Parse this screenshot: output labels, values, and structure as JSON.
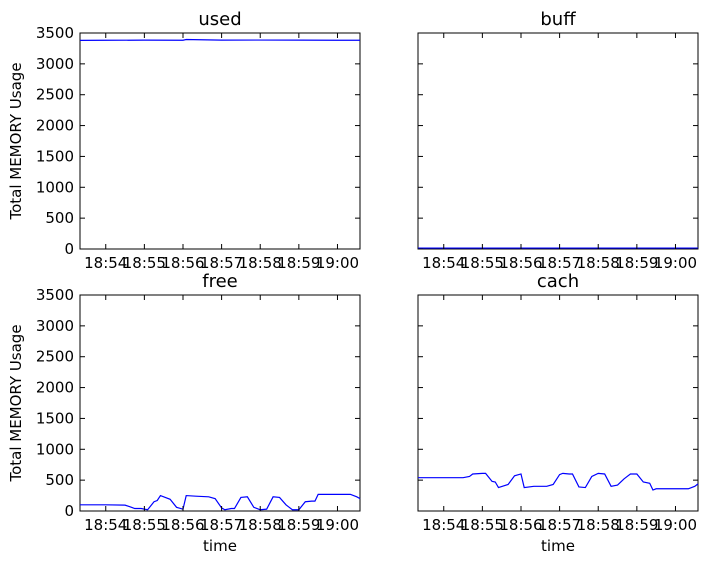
{
  "chart_data": [
    {
      "type": "line",
      "title": "used",
      "ylabel": "Total MEMORY Usage",
      "xlabel": "",
      "x_ticks": [
        "18:54",
        "18:55",
        "18:56",
        "18:57",
        "18:58",
        "18:59",
        "19:00"
      ],
      "y_ticks": [
        "0",
        "500",
        "1000",
        "1500",
        "2000",
        "2500",
        "3000",
        "3500"
      ],
      "ylim": [
        0,
        3500
      ],
      "xlim": [
        "18:53:20",
        "19:00:35"
      ],
      "grid": false,
      "series": [
        {
          "color": "#0000ff",
          "x": [
            "18:53:20",
            "18:54:00",
            "18:55:00",
            "18:56:00",
            "18:56:05",
            "18:57:00",
            "18:58:00",
            "18:59:00",
            "19:00:00",
            "19:00:35"
          ],
          "y": [
            3380,
            3382,
            3384,
            3383,
            3395,
            3385,
            3386,
            3384,
            3383,
            3382
          ]
        }
      ]
    },
    {
      "type": "line",
      "title": "buff",
      "ylabel": "",
      "xlabel": "",
      "x_ticks": [
        "18:54",
        "18:55",
        "18:56",
        "18:57",
        "18:58",
        "18:59",
        "19:00"
      ],
      "y_ticks": [],
      "ylim": [
        0,
        3500
      ],
      "xlim": [
        "18:53:20",
        "19:00:35"
      ],
      "grid": false,
      "series": [
        {
          "color": "#0000ff",
          "x": [
            "18:53:20",
            "19:00:35"
          ],
          "y": [
            15,
            15
          ]
        }
      ]
    },
    {
      "type": "line",
      "title": "free",
      "ylabel": "Total MEMORY Usage",
      "xlabel": "time",
      "x_ticks": [
        "18:54",
        "18:55",
        "18:56",
        "18:57",
        "18:58",
        "18:59",
        "19:00"
      ],
      "y_ticks": [
        "0",
        "500",
        "1000",
        "1500",
        "2000",
        "2500",
        "3000",
        "3500"
      ],
      "ylim": [
        0,
        3500
      ],
      "xlim": [
        "18:53:20",
        "19:00:35"
      ],
      "grid": false,
      "series": [
        {
          "color": "#0000ff",
          "x": [
            "18:53:20",
            "18:54:00",
            "18:54:30",
            "18:54:40",
            "18:54:45",
            "18:54:55",
            "18:55:05",
            "18:55:15",
            "18:55:20",
            "18:55:25",
            "18:55:40",
            "18:55:50",
            "18:56:00",
            "18:56:05",
            "18:56:20",
            "18:56:40",
            "18:56:50",
            "18:57:00",
            "18:57:05",
            "18:57:15",
            "18:57:20",
            "18:57:30",
            "18:57:40",
            "18:57:50",
            "18:58:00",
            "18:58:10",
            "18:58:20",
            "18:58:30",
            "18:58:40",
            "18:58:45",
            "18:58:50",
            "18:59:00",
            "18:59:10",
            "18:59:20",
            "18:59:25",
            "18:59:30",
            "19:00:20",
            "19:00:30",
            "19:00:35"
          ],
          "y": [
            100,
            100,
            95,
            60,
            40,
            40,
            20,
            150,
            170,
            250,
            190,
            60,
            30,
            250,
            240,
            230,
            200,
            50,
            20,
            40,
            40,
            220,
            230,
            60,
            20,
            30,
            230,
            220,
            100,
            60,
            20,
            20,
            150,
            160,
            160,
            270,
            270,
            230,
            200
          ]
        }
      ]
    },
    {
      "type": "line",
      "title": "cach",
      "ylabel": "",
      "xlabel": "time",
      "x_ticks": [
        "18:54",
        "18:55",
        "18:56",
        "18:57",
        "18:58",
        "18:59",
        "19:00"
      ],
      "y_ticks": [],
      "ylim": [
        0,
        3500
      ],
      "xlim": [
        "18:53:20",
        "19:00:35"
      ],
      "grid": false,
      "series": [
        {
          "color": "#0000ff",
          "x": [
            "18:53:20",
            "18:54:00",
            "18:54:30",
            "18:54:40",
            "18:54:45",
            "18:55:00",
            "18:55:05",
            "18:55:15",
            "18:55:20",
            "18:55:25",
            "18:55:40",
            "18:55:50",
            "18:56:00",
            "18:56:05",
            "18:56:20",
            "18:56:40",
            "18:56:50",
            "18:57:00",
            "18:57:05",
            "18:57:15",
            "18:57:20",
            "18:57:30",
            "18:57:40",
            "18:57:50",
            "18:58:00",
            "18:58:10",
            "18:58:20",
            "18:58:30",
            "18:58:40",
            "18:58:45",
            "18:58:50",
            "18:59:00",
            "18:59:10",
            "18:59:20",
            "18:59:25",
            "18:59:30",
            "19:00:20",
            "19:00:30",
            "19:00:35"
          ],
          "y": [
            540,
            540,
            540,
            560,
            600,
            610,
            610,
            480,
            470,
            380,
            430,
            570,
            600,
            380,
            400,
            400,
            430,
            590,
            610,
            600,
            600,
            390,
            380,
            560,
            610,
            600,
            400,
            420,
            520,
            560,
            600,
            600,
            470,
            450,
            340,
            360,
            360,
            400,
            440
          ]
        }
      ]
    }
  ]
}
